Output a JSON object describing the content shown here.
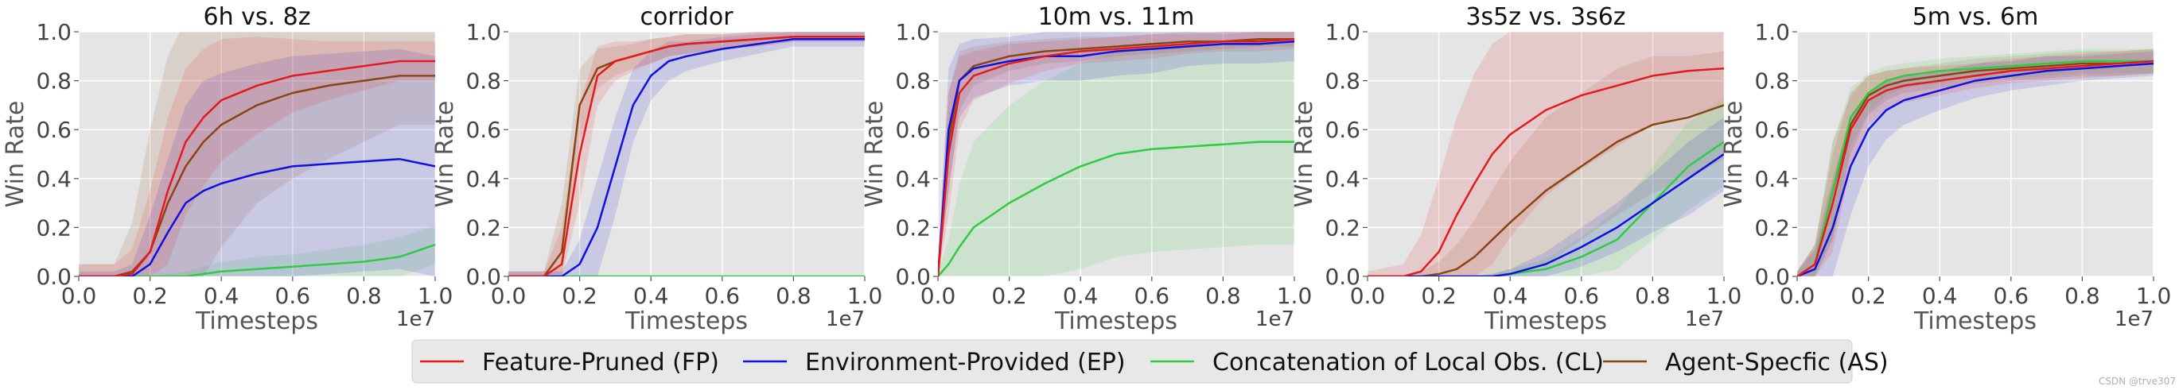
{
  "chart_data": [
    {
      "type": "line",
      "title": "6h vs. 8z",
      "xlabel": "Timesteps",
      "ylabel": "Win Rate",
      "x_multiplier": "1e7",
      "xlim": [
        0,
        1.0
      ],
      "ylim": [
        0,
        1.0
      ],
      "grid": true,
      "x": [
        0,
        0.1,
        0.15,
        0.2,
        0.25,
        0.3,
        0.35,
        0.4,
        0.5,
        0.6,
        0.7,
        0.8,
        0.9,
        1.0
      ],
      "series": [
        {
          "id": "FP",
          "values": [
            0,
            0,
            0.01,
            0.1,
            0.35,
            0.55,
            0.65,
            0.72,
            0.78,
            0.82,
            0.84,
            0.86,
            0.88,
            0.88
          ],
          "band": [
            0.05,
            0.05,
            0.1,
            0.25,
            0.3,
            0.3,
            0.28,
            0.25,
            0.2,
            0.15,
            0.12,
            0.1,
            0.08,
            0.08
          ]
        },
        {
          "id": "EP",
          "values": [
            0,
            0,
            0,
            0.05,
            0.18,
            0.3,
            0.35,
            0.38,
            0.42,
            0.45,
            0.46,
            0.47,
            0.48,
            0.45
          ],
          "band": [
            0.02,
            0.02,
            0.05,
            0.2,
            0.3,
            0.4,
            0.45,
            0.45,
            0.45,
            0.45,
            0.45,
            0.45,
            0.45,
            0.45
          ]
        },
        {
          "id": "CL",
          "values": [
            0,
            0,
            0,
            0,
            0,
            0,
            0.01,
            0.02,
            0.03,
            0.04,
            0.05,
            0.06,
            0.08,
            0.13
          ],
          "band": [
            0,
            0,
            0,
            0,
            0.01,
            0.02,
            0.03,
            0.04,
            0.05,
            0.05,
            0.06,
            0.07,
            0.08,
            0.08
          ]
        },
        {
          "id": "AS",
          "values": [
            0,
            0,
            0.02,
            0.1,
            0.3,
            0.45,
            0.55,
            0.62,
            0.7,
            0.75,
            0.78,
            0.8,
            0.82,
            0.82
          ],
          "band": [
            0.05,
            0.05,
            0.2,
            0.5,
            0.6,
            0.6,
            0.55,
            0.5,
            0.4,
            0.35,
            0.3,
            0.25,
            0.2,
            0.2
          ]
        }
      ]
    },
    {
      "type": "line",
      "title": "corridor",
      "xlabel": "Timesteps",
      "ylabel": "Win Rate",
      "x_multiplier": "1e7",
      "xlim": [
        0,
        1.0
      ],
      "ylim": [
        0,
        1.0
      ],
      "grid": true,
      "x": [
        0,
        0.1,
        0.15,
        0.2,
        0.25,
        0.3,
        0.35,
        0.4,
        0.45,
        0.5,
        0.6,
        0.7,
        0.8,
        0.9,
        1.0
      ],
      "series": [
        {
          "id": "FP",
          "values": [
            0,
            0,
            0.05,
            0.5,
            0.82,
            0.88,
            0.9,
            0.92,
            0.94,
            0.95,
            0.96,
            0.97,
            0.98,
            0.98,
            0.98
          ],
          "band": [
            0.02,
            0.02,
            0.15,
            0.2,
            0.12,
            0.08,
            0.06,
            0.05,
            0.04,
            0.04,
            0.03,
            0.03,
            0.02,
            0.02,
            0.02
          ]
        },
        {
          "id": "EP",
          "values": [
            0,
            0,
            0,
            0.05,
            0.2,
            0.45,
            0.7,
            0.82,
            0.88,
            0.9,
            0.93,
            0.95,
            0.97,
            0.97,
            0.97
          ],
          "band": [
            0.02,
            0.02,
            0.02,
            0.1,
            0.2,
            0.2,
            0.15,
            0.1,
            0.08,
            0.06,
            0.05,
            0.04,
            0.03,
            0.03,
            0.03
          ]
        },
        {
          "id": "CL",
          "values": [
            0,
            0,
            0,
            0,
            0,
            0,
            0,
            0,
            0,
            0,
            0,
            0,
            0,
            0,
            0
          ],
          "band": [
            0,
            0,
            0,
            0,
            0,
            0,
            0,
            0,
            0,
            0,
            0,
            0,
            0,
            0,
            0
          ]
        },
        {
          "id": "AS",
          "values": [
            0,
            0,
            0.1,
            0.7,
            0.85,
            0.88,
            0.9,
            0.92,
            0.94,
            0.95,
            0.96,
            0.97,
            0.98,
            0.98,
            0.98
          ],
          "band": [
            0.02,
            0.02,
            0.2,
            0.15,
            0.08,
            0.06,
            0.05,
            0.05,
            0.04,
            0.04,
            0.03,
            0.03,
            0.02,
            0.02,
            0.02
          ]
        }
      ]
    },
    {
      "type": "line",
      "title": "10m vs. 11m",
      "xlabel": "Timesteps",
      "ylabel": "Win Rate",
      "x_multiplier": "1e7",
      "xlim": [
        0,
        1.0
      ],
      "ylim": [
        0,
        1.0
      ],
      "grid": true,
      "x": [
        0,
        0.03,
        0.06,
        0.1,
        0.2,
        0.3,
        0.4,
        0.5,
        0.6,
        0.7,
        0.8,
        0.9,
        1.0
      ],
      "series": [
        {
          "id": "FP",
          "values": [
            0,
            0.5,
            0.75,
            0.82,
            0.87,
            0.9,
            0.92,
            0.93,
            0.94,
            0.95,
            0.96,
            0.96,
            0.97
          ],
          "band": [
            0.05,
            0.25,
            0.15,
            0.1,
            0.08,
            0.06,
            0.05,
            0.05,
            0.05,
            0.04,
            0.04,
            0.04,
            0.04
          ]
        },
        {
          "id": "EP",
          "values": [
            0,
            0.6,
            0.8,
            0.85,
            0.88,
            0.9,
            0.9,
            0.92,
            0.93,
            0.94,
            0.95,
            0.95,
            0.96
          ],
          "band": [
            0.05,
            0.25,
            0.15,
            0.12,
            0.1,
            0.1,
            0.1,
            0.1,
            0.1,
            0.08,
            0.08,
            0.08,
            0.08
          ]
        },
        {
          "id": "CL",
          "values": [
            0,
            0.05,
            0.12,
            0.2,
            0.3,
            0.38,
            0.45,
            0.5,
            0.52,
            0.53,
            0.54,
            0.55,
            0.55
          ],
          "band": [
            0.02,
            0.1,
            0.25,
            0.35,
            0.4,
            0.42,
            0.42,
            0.42,
            0.42,
            0.42,
            0.42,
            0.42,
            0.42
          ]
        },
        {
          "id": "AS",
          "values": [
            0,
            0.55,
            0.8,
            0.86,
            0.9,
            0.92,
            0.93,
            0.94,
            0.95,
            0.96,
            0.96,
            0.97,
            0.97
          ],
          "band": [
            0.05,
            0.2,
            0.12,
            0.08,
            0.06,
            0.05,
            0.05,
            0.04,
            0.04,
            0.04,
            0.03,
            0.03,
            0.03
          ]
        }
      ]
    },
    {
      "type": "line",
      "title": "3s5z vs. 3s6z",
      "xlabel": "Timesteps",
      "ylabel": "Win Rate",
      "x_multiplier": "1e7",
      "xlim": [
        0,
        1.0
      ],
      "ylim": [
        0,
        1.0
      ],
      "grid": true,
      "x": [
        0,
        0.1,
        0.15,
        0.2,
        0.25,
        0.3,
        0.35,
        0.4,
        0.5,
        0.6,
        0.7,
        0.8,
        0.9,
        1.0
      ],
      "series": [
        {
          "id": "FP",
          "values": [
            0,
            0,
            0.02,
            0.1,
            0.25,
            0.38,
            0.5,
            0.58,
            0.68,
            0.74,
            0.78,
            0.82,
            0.84,
            0.85
          ],
          "band": [
            0.02,
            0.05,
            0.15,
            0.3,
            0.4,
            0.45,
            0.45,
            0.42,
            0.35,
            0.3,
            0.25,
            0.2,
            0.18,
            0.15
          ]
        },
        {
          "id": "EP",
          "values": [
            0,
            0,
            0,
            0,
            0,
            0,
            0,
            0.01,
            0.05,
            0.12,
            0.2,
            0.3,
            0.4,
            0.5
          ],
          "band": [
            0,
            0,
            0,
            0,
            0,
            0,
            0.01,
            0.02,
            0.05,
            0.08,
            0.1,
            0.12,
            0.15,
            0.15
          ]
        },
        {
          "id": "CL",
          "values": [
            0,
            0,
            0,
            0,
            0,
            0,
            0,
            0.01,
            0.03,
            0.08,
            0.15,
            0.3,
            0.45,
            0.55
          ],
          "band": [
            0,
            0,
            0,
            0,
            0,
            0,
            0.01,
            0.02,
            0.04,
            0.08,
            0.12,
            0.15,
            0.18,
            0.18
          ]
        },
        {
          "id": "AS",
          "values": [
            0,
            0,
            0,
            0.01,
            0.03,
            0.08,
            0.15,
            0.22,
            0.35,
            0.45,
            0.55,
            0.62,
            0.65,
            0.7
          ],
          "band": [
            0,
            0,
            0.02,
            0.05,
            0.1,
            0.15,
            0.2,
            0.25,
            0.3,
            0.3,
            0.3,
            0.28,
            0.25,
            0.22
          ]
        }
      ]
    },
    {
      "type": "line",
      "title": "5m vs. 6m",
      "xlabel": "Timesteps",
      "ylabel": "Win Rate",
      "x_multiplier": "1e7",
      "xlim": [
        0,
        1.0
      ],
      "ylim": [
        0,
        1.0
      ],
      "grid": true,
      "x": [
        0,
        0.05,
        0.1,
        0.15,
        0.2,
        0.25,
        0.3,
        0.4,
        0.5,
        0.6,
        0.7,
        0.8,
        0.9,
        1.0
      ],
      "series": [
        {
          "id": "FP",
          "values": [
            0,
            0.05,
            0.3,
            0.6,
            0.72,
            0.76,
            0.78,
            0.8,
            0.82,
            0.84,
            0.85,
            0.86,
            0.87,
            0.88
          ],
          "band": [
            0.02,
            0.08,
            0.2,
            0.15,
            0.1,
            0.08,
            0.07,
            0.06,
            0.05,
            0.05,
            0.05,
            0.05,
            0.05,
            0.05
          ]
        },
        {
          "id": "EP",
          "values": [
            0,
            0.03,
            0.2,
            0.45,
            0.6,
            0.68,
            0.72,
            0.76,
            0.8,
            0.82,
            0.84,
            0.85,
            0.86,
            0.87
          ],
          "band": [
            0.02,
            0.08,
            0.2,
            0.2,
            0.15,
            0.12,
            0.1,
            0.08,
            0.07,
            0.06,
            0.06,
            0.05,
            0.05,
            0.05
          ]
        },
        {
          "id": "CL",
          "values": [
            0,
            0.05,
            0.35,
            0.65,
            0.75,
            0.8,
            0.82,
            0.84,
            0.85,
            0.86,
            0.87,
            0.88,
            0.88,
            0.88
          ],
          "band": [
            0.02,
            0.08,
            0.2,
            0.12,
            0.08,
            0.06,
            0.05,
            0.05,
            0.05,
            0.05,
            0.05,
            0.05,
            0.05,
            0.05
          ]
        },
        {
          "id": "AS",
          "values": [
            0,
            0.05,
            0.35,
            0.62,
            0.74,
            0.78,
            0.8,
            0.82,
            0.84,
            0.85,
            0.86,
            0.87,
            0.87,
            0.88
          ],
          "band": [
            0.02,
            0.08,
            0.2,
            0.12,
            0.08,
            0.06,
            0.05,
            0.05,
            0.05,
            0.05,
            0.05,
            0.05,
            0.05,
            0.05
          ]
        }
      ]
    }
  ],
  "ticks": {
    "x": [
      "0.0",
      "0.2",
      "0.4",
      "0.6",
      "0.8",
      "1.0"
    ],
    "y": [
      "0.0",
      "0.2",
      "0.4",
      "0.6",
      "0.8",
      "1.0"
    ]
  },
  "legend": {
    "placement": "bottom-center",
    "entries": [
      {
        "id": "FP",
        "label": "Feature-Pruned (FP)",
        "color": "#e41a1c"
      },
      {
        "id": "EP",
        "label": "Environment-Provided (EP)",
        "color": "#1010e0"
      },
      {
        "id": "CL",
        "label": "Concatenation of Local Obs. (CL)",
        "color": "#2ecc40"
      },
      {
        "id": "AS",
        "label": "Agent-Specfic (AS)",
        "color": "#8b4513"
      }
    ]
  },
  "watermark": "CSDN @trve307"
}
